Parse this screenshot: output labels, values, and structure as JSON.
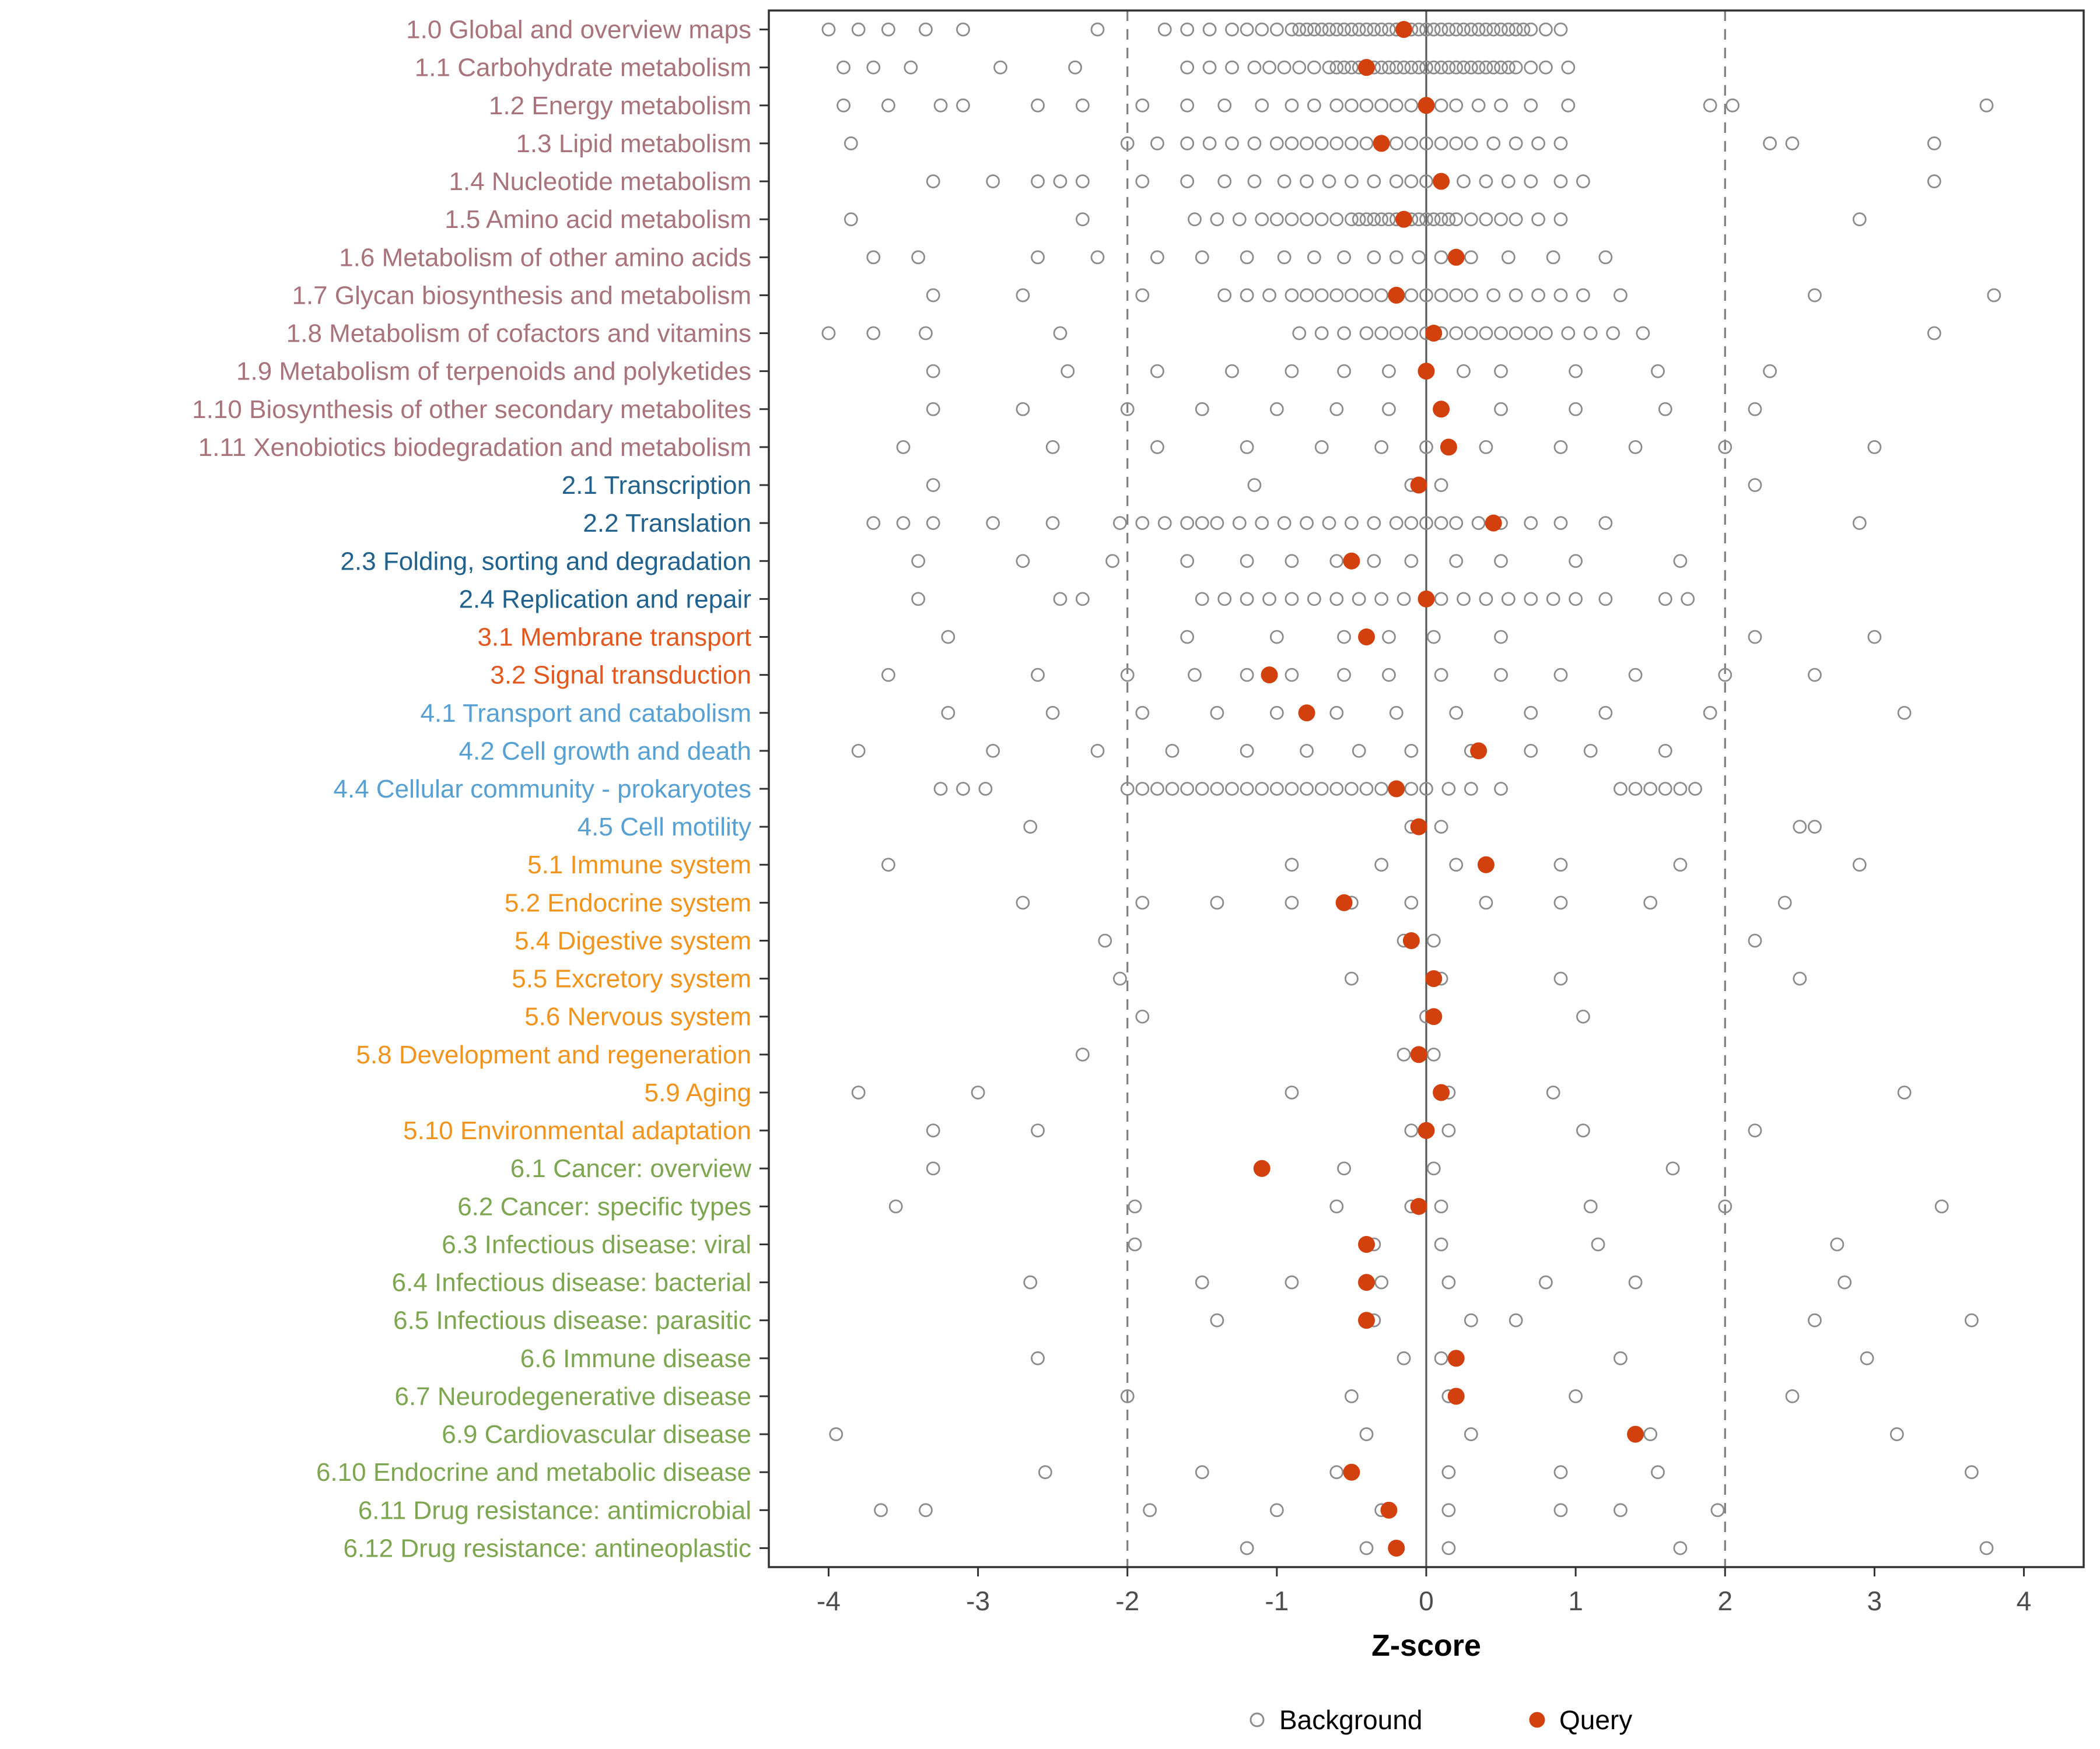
{
  "chart_data": {
    "type": "scatter",
    "title": "",
    "xlabel": "Z-score",
    "ylabel": "",
    "x_ticks": [
      -4,
      -3,
      -2,
      -1,
      0,
      1,
      2,
      3,
      4
    ],
    "xlim": [
      -4.4,
      4.4
    ],
    "grid": false,
    "reference_lines": {
      "solid": [
        0
      ],
      "dashed": [
        -2,
        2
      ]
    },
    "legend": [
      {
        "label": "Background",
        "marker": "open-circle"
      },
      {
        "label": "Query",
        "marker": "filled-circle"
      }
    ],
    "legend_position": "bottom",
    "colors": {
      "query": "#d2400e",
      "background_stroke": "#8c8c8c",
      "axis_text": "#4d4d4d",
      "panel_border": "#333333",
      "zero_line": "#595959",
      "dashed_line": "#7f7f7f",
      "groups": {
        "1": "#a8737b",
        "2": "#20618d",
        "3": "#e2581e",
        "4": "#57a0d3",
        "5": "#f0941d",
        "6": "#7ea651"
      }
    },
    "categories": [
      {
        "label": "1.0 Global and overview maps",
        "group": "1",
        "query": -0.15,
        "background": [
          -4.0,
          -3.8,
          -3.6,
          -3.35,
          -3.1,
          -2.2,
          -1.75,
          -1.6,
          -1.45,
          -1.3,
          -1.2,
          -1.1,
          -1.0,
          -0.9,
          -0.85,
          -0.8,
          -0.75,
          -0.7,
          -0.65,
          -0.6,
          -0.55,
          -0.5,
          -0.45,
          -0.4,
          -0.35,
          -0.3,
          -0.25,
          -0.2,
          -0.15,
          -0.1,
          -0.05,
          0.0,
          0.05,
          0.1,
          0.15,
          0.2,
          0.25,
          0.3,
          0.35,
          0.4,
          0.45,
          0.5,
          0.55,
          0.6,
          0.65,
          0.7,
          0.8,
          0.9
        ]
      },
      {
        "label": "1.1 Carbohydrate metabolism",
        "group": "1",
        "query": -0.4,
        "background": [
          -3.9,
          -3.7,
          -3.45,
          -2.85,
          -2.35,
          -1.6,
          -1.45,
          -1.3,
          -1.15,
          -1.05,
          -0.95,
          -0.85,
          -0.75,
          -0.65,
          -0.6,
          -0.55,
          -0.5,
          -0.45,
          -0.4,
          -0.35,
          -0.3,
          -0.25,
          -0.2,
          -0.15,
          -0.1,
          -0.05,
          0.0,
          0.05,
          0.1,
          0.15,
          0.2,
          0.25,
          0.3,
          0.35,
          0.4,
          0.45,
          0.5,
          0.55,
          0.6,
          0.7,
          0.8,
          0.95
        ]
      },
      {
        "label": "1.2 Energy metabolism",
        "group": "1",
        "query": 0.0,
        "background": [
          -3.9,
          -3.6,
          -3.25,
          -3.1,
          -2.6,
          -2.3,
          -1.9,
          -1.6,
          -1.35,
          -1.1,
          -0.9,
          -0.75,
          -0.6,
          -0.5,
          -0.4,
          -0.3,
          -0.2,
          -0.1,
          0.0,
          0.1,
          0.2,
          0.35,
          0.5,
          0.7,
          0.95,
          1.9,
          2.05,
          3.75
        ]
      },
      {
        "label": "1.3 Lipid metabolism",
        "group": "1",
        "query": -0.3,
        "background": [
          -3.85,
          -2.0,
          -1.8,
          -1.6,
          -1.45,
          -1.3,
          -1.15,
          -1.0,
          -0.9,
          -0.8,
          -0.7,
          -0.6,
          -0.5,
          -0.4,
          -0.3,
          -0.2,
          -0.1,
          0.0,
          0.1,
          0.2,
          0.3,
          0.45,
          0.6,
          0.75,
          0.9,
          2.3,
          2.45,
          3.4
        ]
      },
      {
        "label": "1.4 Nucleotide metabolism",
        "group": "1",
        "query": 0.1,
        "background": [
          -3.3,
          -2.9,
          -2.6,
          -2.45,
          -2.3,
          -1.9,
          -1.6,
          -1.35,
          -1.15,
          -0.95,
          -0.8,
          -0.65,
          -0.5,
          -0.35,
          -0.2,
          -0.1,
          0.0,
          0.1,
          0.25,
          0.4,
          0.55,
          0.7,
          0.9,
          1.05,
          3.4
        ]
      },
      {
        "label": "1.5 Amino acid metabolism",
        "group": "1",
        "query": -0.15,
        "background": [
          -3.85,
          -2.3,
          -1.55,
          -1.4,
          -1.25,
          -1.1,
          -1.0,
          -0.9,
          -0.8,
          -0.7,
          -0.6,
          -0.5,
          -0.45,
          -0.4,
          -0.35,
          -0.3,
          -0.25,
          -0.2,
          -0.15,
          -0.1,
          -0.05,
          0.0,
          0.05,
          0.1,
          0.15,
          0.2,
          0.3,
          0.4,
          0.5,
          0.6,
          0.75,
          0.9,
          2.9
        ]
      },
      {
        "label": "1.6 Metabolism of other amino acids",
        "group": "1",
        "query": 0.2,
        "background": [
          -3.7,
          -3.4,
          -2.6,
          -2.2,
          -1.8,
          -1.5,
          -1.2,
          -0.95,
          -0.75,
          -0.55,
          -0.35,
          -0.2,
          -0.05,
          0.1,
          0.3,
          0.55,
          0.85,
          1.2
        ]
      },
      {
        "label": "1.7 Glycan biosynthesis and metabolism",
        "group": "1",
        "query": -0.2,
        "background": [
          -3.3,
          -2.7,
          -1.9,
          -1.35,
          -1.2,
          -1.05,
          -0.9,
          -0.8,
          -0.7,
          -0.6,
          -0.5,
          -0.4,
          -0.3,
          -0.2,
          -0.1,
          0.0,
          0.1,
          0.2,
          0.3,
          0.45,
          0.6,
          0.75,
          0.9,
          1.05,
          1.3,
          2.6,
          3.8
        ]
      },
      {
        "label": "1.8 Metabolism of cofactors and vitamins",
        "group": "1",
        "query": 0.05,
        "background": [
          -4.0,
          -3.7,
          -3.35,
          -2.45,
          -0.85,
          -0.7,
          -0.55,
          -0.4,
          -0.3,
          -0.2,
          -0.1,
          0.0,
          0.1,
          0.2,
          0.3,
          0.4,
          0.5,
          0.6,
          0.7,
          0.8,
          0.95,
          1.1,
          1.25,
          1.45,
          3.4
        ]
      },
      {
        "label": "1.9 Metabolism of terpenoids and polyketides",
        "group": "1",
        "query": 0.0,
        "background": [
          -3.3,
          -2.4,
          -1.8,
          -1.3,
          -0.9,
          -0.55,
          -0.25,
          0.0,
          0.25,
          0.5,
          1.0,
          1.55,
          2.3
        ]
      },
      {
        "label": "1.10 Biosynthesis of other secondary metabolites",
        "group": "1",
        "query": 0.1,
        "background": [
          -3.3,
          -2.7,
          -2.0,
          -1.5,
          -1.0,
          -0.6,
          -0.25,
          0.1,
          0.5,
          1.0,
          1.6,
          2.2
        ]
      },
      {
        "label": "1.11 Xenobiotics biodegradation and metabolism",
        "group": "1",
        "query": 0.15,
        "background": [
          -3.5,
          -2.5,
          -1.8,
          -1.2,
          -0.7,
          -0.3,
          0.0,
          0.4,
          0.9,
          1.4,
          2.0,
          3.0
        ]
      },
      {
        "label": "2.1 Transcription",
        "group": "2",
        "query": -0.05,
        "background": [
          -3.3,
          -1.15,
          -0.1,
          0.1,
          2.2
        ]
      },
      {
        "label": "2.2 Translation",
        "group": "2",
        "query": 0.45,
        "background": [
          -3.7,
          -3.5,
          -3.3,
          -2.9,
          -2.5,
          -2.05,
          -1.9,
          -1.75,
          -1.6,
          -1.5,
          -1.4,
          -1.25,
          -1.1,
          -0.95,
          -0.8,
          -0.65,
          -0.5,
          -0.35,
          -0.2,
          -0.1,
          0.0,
          0.1,
          0.2,
          0.35,
          0.5,
          0.7,
          0.9,
          1.2,
          2.9
        ]
      },
      {
        "label": "2.3 Folding, sorting and degradation",
        "group": "2",
        "query": -0.5,
        "background": [
          -3.4,
          -2.7,
          -2.1,
          -1.6,
          -1.2,
          -0.9,
          -0.6,
          -0.35,
          -0.1,
          0.2,
          0.5,
          1.0,
          1.7
        ]
      },
      {
        "label": "2.4 Replication and repair",
        "group": "2",
        "query": 0.0,
        "background": [
          -3.4,
          -2.45,
          -2.3,
          -1.5,
          -1.35,
          -1.2,
          -1.05,
          -0.9,
          -0.75,
          -0.6,
          -0.45,
          -0.3,
          -0.15,
          0.0,
          0.1,
          0.25,
          0.4,
          0.55,
          0.7,
          0.85,
          1.0,
          1.2,
          1.6,
          1.75
        ]
      },
      {
        "label": "3.1 Membrane transport",
        "group": "3",
        "query": -0.4,
        "background": [
          -3.2,
          -1.6,
          -1.0,
          -0.55,
          -0.25,
          0.05,
          0.5,
          2.2,
          3.0
        ]
      },
      {
        "label": "3.2 Signal transduction",
        "group": "3",
        "query": -1.05,
        "background": [
          -3.6,
          -2.6,
          -2.0,
          -1.55,
          -1.2,
          -0.9,
          -0.55,
          -0.25,
          0.1,
          0.5,
          0.9,
          1.4,
          2.0,
          2.6
        ]
      },
      {
        "label": "4.1 Transport and catabolism",
        "group": "4",
        "query": -0.8,
        "background": [
          -3.2,
          -2.5,
          -1.9,
          -1.4,
          -1.0,
          -0.6,
          -0.2,
          0.2,
          0.7,
          1.2,
          1.9,
          3.2
        ]
      },
      {
        "label": "4.2 Cell growth and death",
        "group": "4",
        "query": 0.35,
        "background": [
          -3.8,
          -2.9,
          -2.2,
          -1.7,
          -1.2,
          -0.8,
          -0.45,
          -0.1,
          0.3,
          0.7,
          1.1,
          1.6
        ]
      },
      {
        "label": "4.4 Cellular community - prokaryotes",
        "group": "4",
        "query": -0.2,
        "background": [
          -3.25,
          -3.1,
          -2.95,
          -2.0,
          -1.9,
          -1.8,
          -1.7,
          -1.6,
          -1.5,
          -1.4,
          -1.3,
          -1.2,
          -1.1,
          -1.0,
          -0.9,
          -0.8,
          -0.7,
          -0.6,
          -0.5,
          -0.4,
          -0.3,
          -0.2,
          -0.1,
          0.0,
          0.15,
          0.3,
          0.5,
          1.3,
          1.4,
          1.5,
          1.6,
          1.7,
          1.8
        ]
      },
      {
        "label": "4.5 Cell motility",
        "group": "4",
        "query": -0.05,
        "background": [
          -2.65,
          -0.1,
          0.1,
          2.5,
          2.6
        ]
      },
      {
        "label": "5.1 Immune system",
        "group": "5",
        "query": 0.4,
        "background": [
          -3.6,
          -0.9,
          -0.3,
          0.2,
          0.9,
          1.7,
          2.9
        ]
      },
      {
        "label": "5.2 Endocrine system",
        "group": "5",
        "query": -0.55,
        "background": [
          -2.7,
          -1.9,
          -1.4,
          -0.9,
          -0.5,
          -0.1,
          0.4,
          0.9,
          1.5,
          2.4
        ]
      },
      {
        "label": "5.4 Digestive system",
        "group": "5",
        "query": -0.1,
        "background": [
          -2.15,
          -0.15,
          0.05,
          2.2
        ]
      },
      {
        "label": "5.5 Excretory system",
        "group": "5",
        "query": 0.05,
        "background": [
          -2.05,
          -0.5,
          0.1,
          0.9,
          2.5
        ]
      },
      {
        "label": "5.6 Nervous system",
        "group": "5",
        "query": 0.05,
        "background": [
          -1.9,
          0.0,
          1.05
        ]
      },
      {
        "label": "5.8 Development and regeneration",
        "group": "5",
        "query": -0.05,
        "background": [
          -2.3,
          -0.15,
          0.05
        ]
      },
      {
        "label": "5.9 Aging",
        "group": "5",
        "query": 0.1,
        "background": [
          -3.8,
          -3.0,
          -0.9,
          0.15,
          0.85,
          3.2
        ]
      },
      {
        "label": "5.10 Environmental adaptation",
        "group": "5",
        "query": 0.0,
        "background": [
          -3.3,
          -2.6,
          -0.1,
          0.15,
          1.05,
          2.2
        ]
      },
      {
        "label": "6.1 Cancer: overview",
        "group": "6",
        "query": -1.1,
        "background": [
          -3.3,
          -0.55,
          0.05,
          1.65
        ]
      },
      {
        "label": "6.2 Cancer: specific types",
        "group": "6",
        "query": -0.05,
        "background": [
          -3.55,
          -1.95,
          -0.6,
          -0.1,
          0.1,
          1.1,
          2.0,
          3.45
        ]
      },
      {
        "label": "6.3 Infectious disease: viral",
        "group": "6",
        "query": -0.4,
        "background": [
          -1.95,
          -0.35,
          0.1,
          1.15,
          2.75
        ]
      },
      {
        "label": "6.4 Infectious disease: bacterial",
        "group": "6",
        "query": -0.4,
        "background": [
          -2.65,
          -1.5,
          -0.9,
          -0.3,
          0.15,
          0.8,
          1.4,
          2.8
        ]
      },
      {
        "label": "6.5 Infectious disease: parasitic",
        "group": "6",
        "query": -0.4,
        "background": [
          -1.4,
          -0.35,
          0.3,
          0.6,
          2.6,
          3.65
        ]
      },
      {
        "label": "6.6 Immune disease",
        "group": "6",
        "query": 0.2,
        "background": [
          -2.6,
          -0.15,
          0.1,
          1.3,
          2.95
        ]
      },
      {
        "label": "6.7 Neurodegenerative disease",
        "group": "6",
        "query": 0.2,
        "background": [
          -2.0,
          -0.5,
          0.15,
          1.0,
          2.45
        ]
      },
      {
        "label": "6.9 Cardiovascular disease",
        "group": "6",
        "query": 1.4,
        "background": [
          -3.95,
          -0.4,
          0.3,
          1.5,
          3.15
        ]
      },
      {
        "label": "6.10 Endocrine and metabolic disease",
        "group": "6",
        "query": -0.5,
        "background": [
          -2.55,
          -1.5,
          -0.6,
          0.15,
          0.9,
          1.55,
          3.65
        ]
      },
      {
        "label": "6.11 Drug resistance: antimicrobial",
        "group": "6",
        "query": -0.25,
        "background": [
          -3.65,
          -3.35,
          -1.85,
          -1.0,
          -0.3,
          0.15,
          0.9,
          1.3,
          1.95
        ]
      },
      {
        "label": "6.12 Drug resistance: antineoplastic",
        "group": "6",
        "query": -0.2,
        "background": [
          -1.2,
          -0.4,
          0.15,
          1.7,
          3.75
        ]
      }
    ]
  }
}
